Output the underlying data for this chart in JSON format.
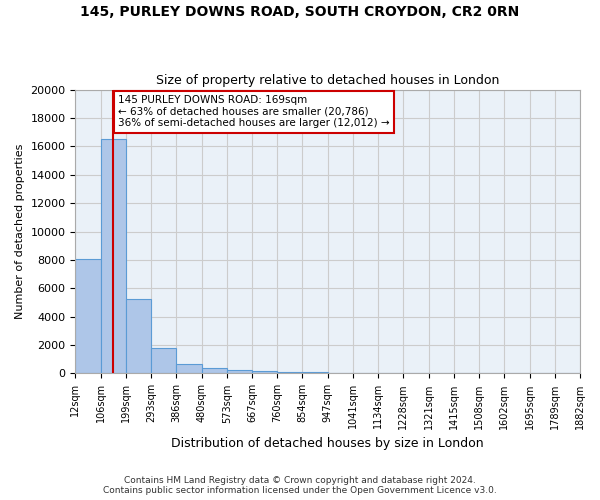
{
  "title_line1": "145, PURLEY DOWNS ROAD, SOUTH CROYDON, CR2 0RN",
  "title_line2": "Size of property relative to detached houses in London",
  "xlabel": "Distribution of detached houses by size in London",
  "ylabel": "Number of detached properties",
  "bin_labels": [
    "12sqm",
    "106sqm",
    "199sqm",
    "293sqm",
    "386sqm",
    "480sqm",
    "573sqm",
    "667sqm",
    "760sqm",
    "854sqm",
    "947sqm",
    "1041sqm",
    "1134sqm",
    "1228sqm",
    "1321sqm",
    "1415sqm",
    "1508sqm",
    "1602sqm",
    "1695sqm",
    "1789sqm",
    "1882sqm"
  ],
  "bar_values": [
    8050,
    16550,
    5250,
    1800,
    650,
    350,
    275,
    195,
    135,
    85,
    55,
    35,
    20,
    12,
    8,
    5,
    4,
    3,
    2,
    2
  ],
  "bar_color": "#aec6e8",
  "bar_edge_color": "#5b9bd5",
  "highlight_bin_index": 1,
  "annotation_line1": "145 PURLEY DOWNS ROAD: 169sqm",
  "annotation_line2": "← 63% of detached houses are smaller (20,786)",
  "annotation_line3": "36% of semi-detached houses are larger (12,012) →",
  "annotation_box_color": "#ffffff",
  "annotation_box_edge_color": "#cc0000",
  "vline_color": "#cc0000",
  "vline_x": 1,
  "ylim": [
    0,
    20000
  ],
  "yticks": [
    0,
    2000,
    4000,
    6000,
    8000,
    10000,
    12000,
    14000,
    16000,
    18000,
    20000
  ],
  "grid_color": "#cccccc",
  "bg_color": "#eaf1f8",
  "footer_line1": "Contains HM Land Registry data © Crown copyright and database right 2024.",
  "footer_line2": "Contains public sector information licensed under the Open Government Licence v3.0."
}
